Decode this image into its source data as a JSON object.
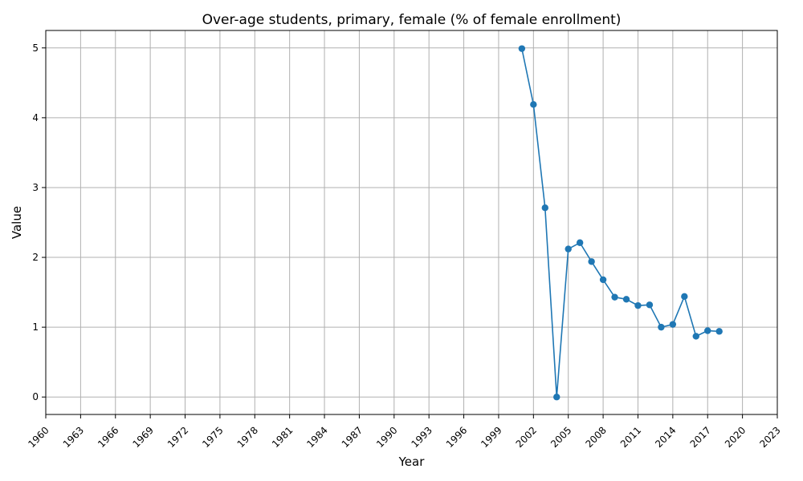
{
  "chart_data": {
    "type": "line",
    "title": "Over-age students, primary, female (% of female enrollment)",
    "xlabel": "Year",
    "ylabel": "Value",
    "xlim": [
      1960,
      2023
    ],
    "ylim": [
      -0.25,
      5.25
    ],
    "grid": true,
    "xticks": [
      1960,
      1963,
      1966,
      1969,
      1972,
      1975,
      1978,
      1981,
      1984,
      1987,
      1990,
      1993,
      1996,
      1999,
      2002,
      2005,
      2008,
      2011,
      2014,
      2017,
      2020,
      2023
    ],
    "yticks": [
      0,
      1,
      2,
      3,
      4,
      5
    ],
    "series": [
      {
        "color": "#1f77b4",
        "x": [
          2001,
          2002,
          2003,
          2004,
          2005,
          2006,
          2007,
          2008,
          2009,
          2010,
          2011,
          2012,
          2013,
          2014,
          2015,
          2016,
          2017,
          2018
        ],
        "y": [
          4.99,
          4.19,
          2.71,
          0.0,
          2.12,
          2.21,
          1.94,
          1.68,
          1.43,
          1.4,
          1.31,
          1.32,
          1.0,
          1.04,
          1.44,
          0.87,
          0.95,
          0.94
        ]
      }
    ]
  }
}
